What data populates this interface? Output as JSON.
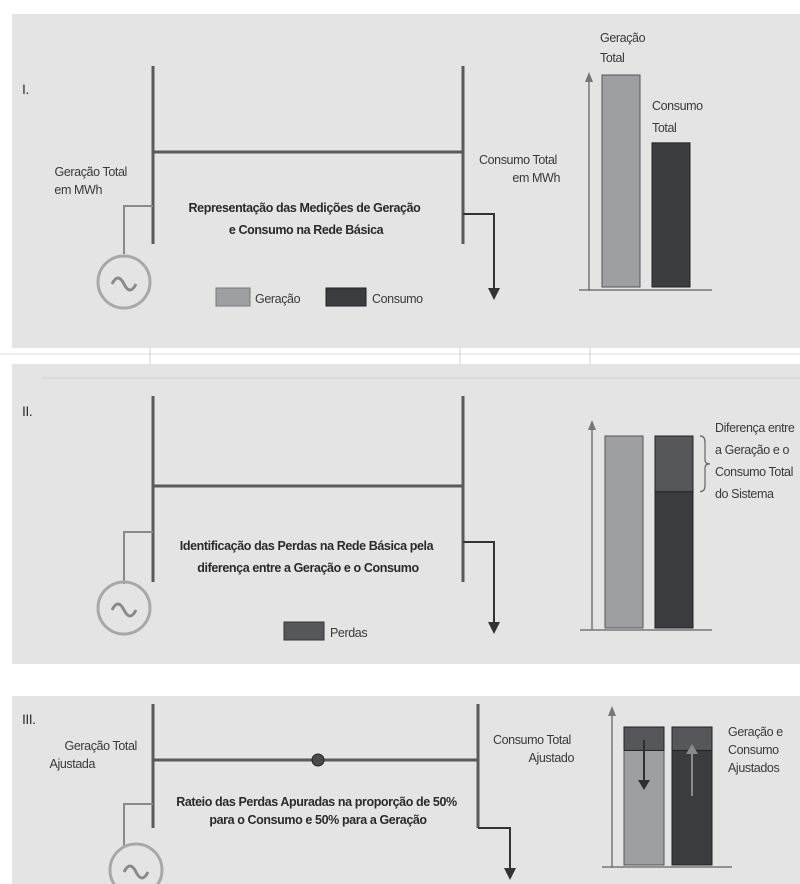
{
  "colors": {
    "panel_bg": "#e4e4e4",
    "line": "#5a5a5a",
    "geracao": "#9e9fa2",
    "consumo": "#3b3c3f",
    "perdas": "#56575b",
    "generator": "#a8a8a8"
  },
  "panel1": {
    "roman": "I.",
    "generation_label": [
      "Geração Total",
      "em MWh"
    ],
    "consumption_label": [
      "Consumo Total",
      "em MWh"
    ],
    "caption": [
      "Representação das Medições de Geração",
      "e Consumo na Rede Básica"
    ],
    "legend": [
      {
        "name": "Geração",
        "color": "#9e9fa2"
      },
      {
        "name": "Consumo",
        "color": "#3b3c3f"
      }
    ],
    "bar_labels": {
      "geracao": [
        "Geração",
        "Total"
      ],
      "consumo": [
        "Consumo",
        "Total"
      ]
    },
    "bars": {
      "geracao": 1.0,
      "consumo": 0.68
    }
  },
  "panel2": {
    "roman": "II.",
    "caption": [
      "Identificação das Perdas na Rede Básica pela",
      "diferença entre a Geração e o Consumo"
    ],
    "legend": [
      {
        "name": "Perdas",
        "color": "#56575b"
      }
    ],
    "annotation": [
      "Diferença entre",
      "a Geração e o",
      "Consumo Total",
      "do Sistema"
    ],
    "bars": {
      "geracao": 1.0,
      "consumo": 1.0,
      "perdas_fraction_of_bar": 0.29
    }
  },
  "panel3": {
    "roman": "III.",
    "generation_label": [
      "Geração Total",
      "Ajustada"
    ],
    "consumption_label": [
      "Consumo Total",
      "Ajustado"
    ],
    "caption": [
      "Rateio das Perdas Apuradas na proporção de 50%",
      "para o Consumo e 50% para a Geração"
    ],
    "annotation": [
      "Geração e",
      "Consumo",
      "Ajustados"
    ],
    "bars": {
      "geracao": 1.0,
      "consumo": 1.0,
      "perdas_fraction_of_bar": 0.17
    }
  }
}
